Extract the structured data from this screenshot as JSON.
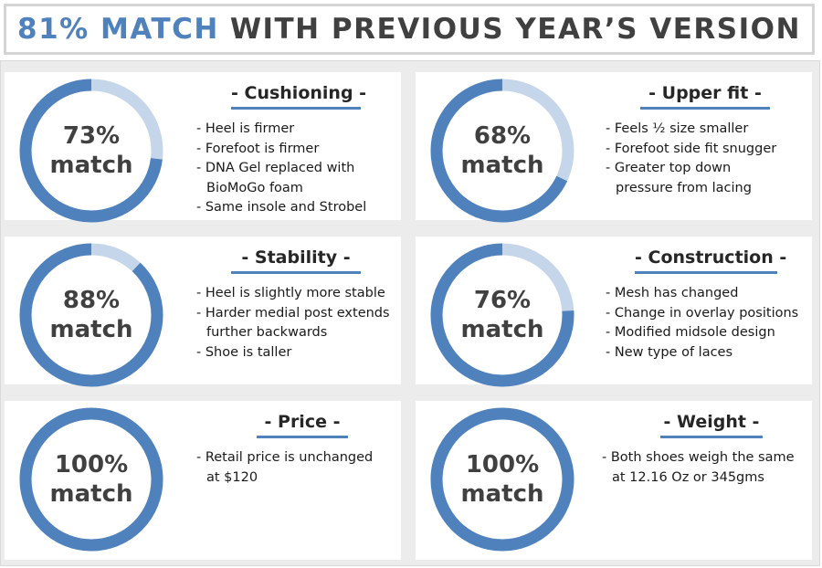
{
  "title": {
    "accent": "81% MATCH",
    "rest": "WITH PREVIOUS YEAR’S VERSION"
  },
  "colors": {
    "ring_fill": "#4f81bd",
    "ring_track": "#c6d6ea",
    "heading_rule": "#4f81bd"
  },
  "chart_data": [
    {
      "type": "pie",
      "title": "- Cushioning -",
      "value": 73,
      "label_line1": "73%",
      "label_line2": "match",
      "bullets": [
        [
          "- Heel is firmer"
        ],
        [
          "- Forefoot is firmer"
        ],
        [
          "- DNA Gel replaced with",
          "BioMoGo foam"
        ],
        [
          "- Same insole and Strobel"
        ]
      ]
    },
    {
      "type": "pie",
      "title": "- Upper fit -",
      "value": 68,
      "label_line1": "68%",
      "label_line2": "match",
      "bullets": [
        [
          "- Feels ½ size smaller"
        ],
        [
          "- Forefoot side fit snugger"
        ],
        [
          "- Greater top down",
          "pressure from lacing"
        ]
      ]
    },
    {
      "type": "pie",
      "title": "- Stability -",
      "value": 88,
      "label_line1": "88%",
      "label_line2": "match",
      "bullets": [
        [
          "- Heel is slightly more stable"
        ],
        [
          "- Harder medial post extends",
          "further backwards"
        ],
        [
          "- Shoe is taller"
        ]
      ]
    },
    {
      "type": "pie",
      "title": "- Construction -",
      "value": 76,
      "label_line1": "76%",
      "label_line2": "match",
      "bullets": [
        [
          "- Mesh has changed"
        ],
        [
          "- Change in overlay positions"
        ],
        [
          "- Modified midsole design"
        ],
        [
          "- New type of laces"
        ]
      ]
    },
    {
      "type": "pie",
      "title": "- Price -",
      "value": 100,
      "label_line1": "100%",
      "label_line2": "match",
      "bullets": [
        [
          "-  Retail price is unchanged",
          "at $120"
        ]
      ]
    },
    {
      "type": "pie",
      "title": "- Weight -",
      "value": 100,
      "label_line1": "100%",
      "label_line2": "match",
      "bullets": [
        [
          "- Both shoes weigh the same",
          "at 12.16 Oz or 345gms"
        ]
      ]
    }
  ]
}
